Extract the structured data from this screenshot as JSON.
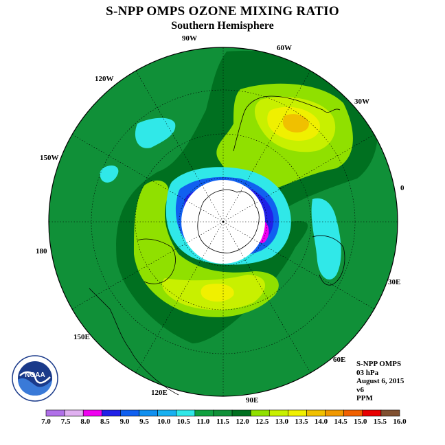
{
  "title": "S-NPP OMPS OZONE MIXING RATIO",
  "subtitle": "Southern Hemisphere",
  "longitude_labels": [
    {
      "name": "90W",
      "text": "90W"
    },
    {
      "name": "60W",
      "text": "60W"
    },
    {
      "name": "30W",
      "text": "30W"
    },
    {
      "name": "120W",
      "text": "120W"
    },
    {
      "name": "150W",
      "text": "150W"
    },
    {
      "name": "0",
      "text": "0"
    },
    {
      "name": "180",
      "text": "180"
    },
    {
      "name": "30E",
      "text": "30E"
    },
    {
      "name": "150E",
      "text": "150E"
    },
    {
      "name": "60E",
      "text": "60E"
    },
    {
      "name": "120E",
      "text": "120E"
    },
    {
      "name": "90E",
      "text": "90E"
    }
  ],
  "info": {
    "instrument": "S-NPP OMPS",
    "level": "03 hPa",
    "date": "August 6, 2015",
    "version": "v6",
    "units": "PPM"
  },
  "logo": {
    "text": "NOAA"
  },
  "colorbar": {
    "ticks": [
      "7.0",
      "7.5",
      "8.0",
      "8.5",
      "9.0",
      "9.5",
      "10.0",
      "10.5",
      "11.0",
      "11.5",
      "12.0",
      "12.5",
      "13.0",
      "13.5",
      "14.0",
      "14.5",
      "15.0",
      "15.5",
      "16.0"
    ],
    "colors": [
      "#b070e8",
      "#e0b0f0",
      "#f000f0",
      "#2020e8",
      "#1060f0",
      "#1090f0",
      "#18b0f0",
      "#30e8e8",
      "#10a040",
      "#109038",
      "#007020",
      "#90e000",
      "#c8f000",
      "#f0f000",
      "#f0c000",
      "#f09800",
      "#f06000",
      "#e80000",
      "#805030"
    ]
  },
  "colors": {
    "background_level": "#109038",
    "ring_dark": "#007020",
    "cyan": "#30e8e8",
    "light_green": "#90e000",
    "yellow_green": "#c8f000",
    "yellow": "#f0f000",
    "orange": "#f0c000",
    "blue": "#1060f0",
    "deep_blue": "#2020e8",
    "magenta": "#f000f0"
  }
}
